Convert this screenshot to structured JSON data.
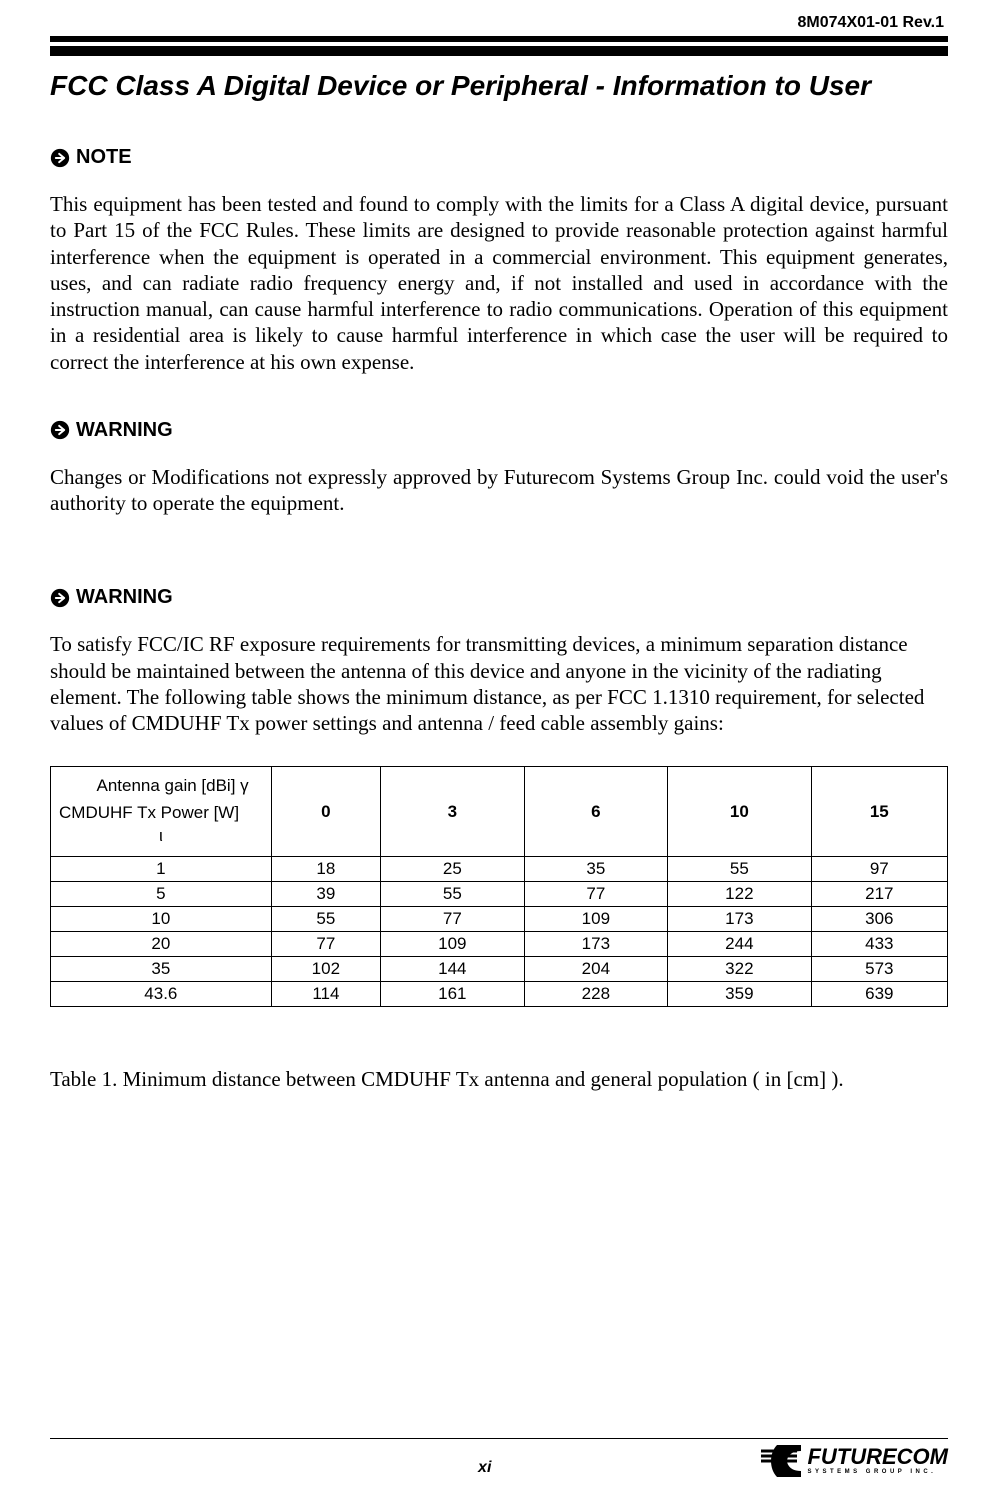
{
  "header": {
    "doc_id": "8M074X01-01  Rev.1"
  },
  "title": "FCC Class A Digital Device or Peripheral - Information to User",
  "sections": {
    "note": {
      "heading": "NOTE",
      "body": "This equipment has been tested and found to comply with the limits for a Class A digital device, pursuant to Part 15 of the FCC Rules.  These limits are designed to provide reasonable protection against harmful interference when the equipment is operated in a commercial environment.  This equipment generates, uses, and can radiate radio frequency energy and, if not installed and used in accordance with the instruction manual, can cause harmful interference to radio communications. Operation of this equipment in a residential area is likely to cause harmful interference in which case the user will be required to correct the interference at his own expense."
    },
    "warning1": {
      "heading": "WARNING",
      "body": "Changes or Modifications not expressly approved by Futurecom Systems Group Inc. could void the user's authority to operate the equipment."
    },
    "warning2": {
      "heading": "WARNING",
      "body": "To satisfy FCC/IC  RF exposure requirements for transmitting devices, a minimum separation distance should be maintained between the antenna of this device and anyone in the vicinity of the radiating element. The following table shows the minimum distance, as per FCC 1.1310 requirement, for selected values of  CMDUHF  Tx power settings and antenna / feed cable assembly gains:"
    }
  },
  "table": {
    "type": "table",
    "corner_top": "Antenna  gain [dBi] γ",
    "corner_bottom": "CMDUHF Tx  Power [W]",
    "corner_iota": "ι",
    "columns": [
      "0",
      "3",
      "6",
      "10",
      "15"
    ],
    "col_widths_pct": [
      24.6,
      12.2,
      16.0,
      16.0,
      16.0,
      15.2
    ],
    "rows": [
      {
        "label": "1",
        "values": [
          "18",
          "25",
          "35",
          "55",
          "97"
        ]
      },
      {
        "label": "5",
        "values": [
          "39",
          "55",
          "77",
          "122",
          "217"
        ]
      },
      {
        "label": "10",
        "values": [
          "55",
          "77",
          "109",
          "173",
          "306"
        ]
      },
      {
        "label": "20",
        "values": [
          "77",
          "109",
          "173",
          "244",
          "433"
        ]
      },
      {
        "label": "35",
        "values": [
          "102",
          "144",
          "204",
          "322",
          "573"
        ]
      },
      {
        "label": "43.6",
        "values": [
          "114",
          "161",
          "228",
          "359",
          "639"
        ]
      }
    ],
    "border_color": "#000000",
    "background_color": "#ffffff",
    "font_family": "Arial",
    "font_size_pt": 13
  },
  "caption": "Table 1.  Minimum distance  between CMDUHF  Tx  antenna and general population  ( in [cm] ).",
  "footer": {
    "page_number": "xi",
    "logo_main": "FUTURECOM",
    "logo_sub": "SYSTEMS GROUP INC."
  },
  "colors": {
    "text": "#000000",
    "background": "#ffffff",
    "rule": "#000000"
  }
}
